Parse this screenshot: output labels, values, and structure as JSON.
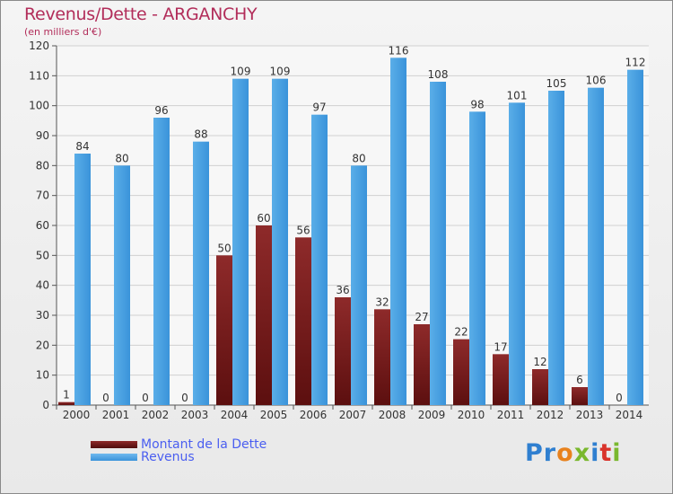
{
  "chart_data": {
    "type": "bar",
    "title": "Revenus/Dette - ARGANCHY",
    "subtitle": "(en milliers d'€)",
    "categories": [
      "2000",
      "2001",
      "2002",
      "2003",
      "2004",
      "2005",
      "2006",
      "2007",
      "2008",
      "2009",
      "2010",
      "2011",
      "2012",
      "2013",
      "2014"
    ],
    "series": [
      {
        "name": "Montant de la Dette",
        "color": "#7a1a1a",
        "values": [
          1,
          0,
          0,
          0,
          50,
          60,
          56,
          36,
          32,
          27,
          22,
          17,
          12,
          6,
          0
        ]
      },
      {
        "name": "Revenus",
        "color": "#3f9be0",
        "values": [
          84,
          80,
          96,
          88,
          109,
          109,
          97,
          80,
          116,
          108,
          98,
          101,
          105,
          106,
          112
        ]
      }
    ],
    "ylim": [
      0,
      120
    ],
    "yticks": [
      0,
      10,
      20,
      30,
      40,
      50,
      60,
      70,
      80,
      90,
      100,
      110,
      120
    ],
    "grid": true,
    "legend": "bottom-left"
  },
  "logo": {
    "text": "Proxiti",
    "letter_colors": [
      "#2f7fd0",
      "#2f7fd0",
      "#e8821e",
      "#7ab82e",
      "#2f7fd0",
      "#d9332b",
      "#7ab82e"
    ]
  }
}
